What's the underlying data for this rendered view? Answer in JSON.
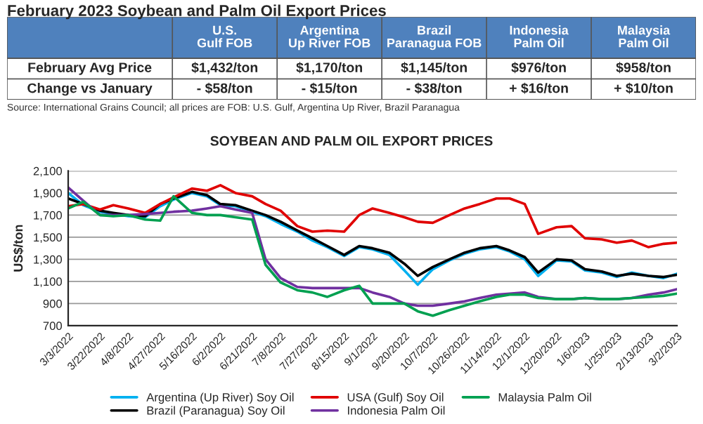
{
  "chart_data": [
    {
      "type": "other",
      "title": "February 2023 Soybean and Palm Oil Export Prices",
      "categories": [
        "U.S. Gulf FOB",
        "Argentina Up River FOB",
        "Brazil Paranagua FOB",
        "Indonesia Palm Oil",
        "Malaysia Palm Oil"
      ],
      "y_categories": [
        "February Avg Price",
        "Change vs January"
      ],
      "cell_labels": [
        [
          "$1,432/ton",
          "$1,170/ton",
          "$1,145/ton",
          "$976/ton",
          "$958/ton"
        ],
        [
          "- $58/ton",
          "- $15/ton",
          "- $38/ton",
          "+ $16/ton",
          "+ $10/ton"
        ]
      ],
      "annotations": [
        "Source: International Grains Council; all prices are FOB: U.S. Gulf, Argentina Up River, Brazil Paranagua"
      ]
    },
    {
      "type": "line",
      "title": "SOYBEAN AND PALM OIL EXPORT PRICES",
      "ylabel": "US$/ton",
      "x": [
        "2022-03-03",
        "2022-03-12",
        "2022-03-22",
        "2022-03-30",
        "2022-04-08",
        "2022-04-18",
        "2022-04-27",
        "2022-05-05",
        "2022-05-16",
        "2022-05-25",
        "2022-06-02",
        "2022-06-11",
        "2022-06-21",
        "2022-06-29",
        "2022-07-08",
        "2022-07-18",
        "2022-07-27",
        "2022-08-05",
        "2022-08-15",
        "2022-08-24",
        "2022-09-01",
        "2022-09-11",
        "2022-09-20",
        "2022-09-28",
        "2022-10-07",
        "2022-10-17",
        "2022-10-26",
        "2022-11-04",
        "2022-11-14",
        "2022-11-22",
        "2022-12-01",
        "2022-12-09",
        "2022-12-20",
        "2022-12-29",
        "2023-01-06",
        "2023-01-16",
        "2023-01-25",
        "2023-02-03",
        "2023-02-13",
        "2023-02-22",
        "2023-03-02"
      ],
      "series": [
        {
          "name": "Argentina (Up River) Soy Oil",
          "color": "#00b0f0",
          "values": [
            1900,
            1790,
            1730,
            1710,
            1690,
            1680,
            1780,
            1840,
            1900,
            1870,
            1790,
            1780,
            1730,
            1690,
            1620,
            1550,
            1470,
            1410,
            1330,
            1410,
            1390,
            1340,
            1200,
            1070,
            1210,
            1290,
            1350,
            1390,
            1410,
            1370,
            1300,
            1150,
            1290,
            1280,
            1200,
            1180,
            1140,
            1180,
            1150,
            1130,
            1170
          ]
        },
        {
          "name": "Brazil (Paranagua) Soy Oil",
          "color": "#000000",
          "values": [
            1850,
            1800,
            1740,
            1720,
            1700,
            1690,
            1800,
            1850,
            1910,
            1880,
            1800,
            1790,
            1740,
            1700,
            1640,
            1560,
            1490,
            1420,
            1340,
            1420,
            1400,
            1360,
            1260,
            1150,
            1230,
            1300,
            1360,
            1400,
            1420,
            1380,
            1320,
            1180,
            1300,
            1290,
            1210,
            1190,
            1150,
            1170,
            1150,
            1140,
            1160
          ]
        },
        {
          "name": "USA (Gulf) Soy Oil",
          "color": "#e00000",
          "values": [
            1780,
            1800,
            1750,
            1790,
            1760,
            1720,
            1800,
            1860,
            1940,
            1920,
            1970,
            1900,
            1870,
            1800,
            1740,
            1600,
            1550,
            1560,
            1550,
            1700,
            1760,
            1720,
            1680,
            1640,
            1630,
            1700,
            1760,
            1800,
            1850,
            1850,
            1800,
            1530,
            1590,
            1600,
            1490,
            1480,
            1450,
            1470,
            1410,
            1440,
            1450
          ]
        },
        {
          "name": "Indonesia Palm Oil",
          "color": "#7030a0",
          "values": [
            1950,
            1830,
            1700,
            1700,
            1700,
            1710,
            1720,
            1730,
            1740,
            1760,
            1780,
            1750,
            1720,
            1300,
            1130,
            1050,
            1040,
            1040,
            1040,
            1040,
            1000,
            960,
            900,
            880,
            880,
            900,
            920,
            950,
            980,
            990,
            1000,
            960,
            940,
            940,
            950,
            940,
            940,
            950,
            980,
            1000,
            1030
          ]
        },
        {
          "name": "Malaysia Palm Oil",
          "color": "#00a050",
          "values": [
            1760,
            1820,
            1700,
            1690,
            1700,
            1660,
            1650,
            1870,
            1720,
            1700,
            1700,
            1680,
            1660,
            1250,
            1090,
            1020,
            1000,
            960,
            1020,
            1060,
            900,
            900,
            900,
            830,
            790,
            840,
            880,
            920,
            960,
            980,
            980,
            950,
            940,
            940,
            950,
            940,
            940,
            950,
            960,
            970,
            990
          ]
        }
      ],
      "xlim": [
        "2022-03-03",
        "2023-03-02"
      ],
      "xticks": [
        {
          "value": "2022-03-03",
          "label": "3/3/2022"
        },
        {
          "value": "2022-03-22",
          "label": "3/22/2022"
        },
        {
          "value": "2022-04-08",
          "label": "4/8/2022"
        },
        {
          "value": "2022-04-27",
          "label": "4/27/2022"
        },
        {
          "value": "2022-05-16",
          "label": "5/16/2022"
        },
        {
          "value": "2022-06-02",
          "label": "6/2/2022"
        },
        {
          "value": "2022-06-21",
          "label": "6/21/2022"
        },
        {
          "value": "2022-07-08",
          "label": "7/8/2022"
        },
        {
          "value": "2022-07-27",
          "label": "7/27/2022"
        },
        {
          "value": "2022-08-15",
          "label": "8/15/2022"
        },
        {
          "value": "2022-09-01",
          "label": "9/1/2022"
        },
        {
          "value": "2022-09-20",
          "label": "9/20/2022"
        },
        {
          "value": "2022-10-07",
          "label": "10/7/2022"
        },
        {
          "value": "2022-10-26",
          "label": "10/26/2022"
        },
        {
          "value": "2022-11-14",
          "label": "11/14/2022"
        },
        {
          "value": "2022-12-01",
          "label": "12/1/2022"
        },
        {
          "value": "2022-12-20",
          "label": "12/20/2022"
        },
        {
          "value": "2023-01-06",
          "label": "1/6/2023"
        },
        {
          "value": "2023-01-25",
          "label": "1/25/2023"
        },
        {
          "value": "2023-02-13",
          "label": "2/13/2023"
        },
        {
          "value": "2023-03-02",
          "label": "3/2/2023"
        }
      ],
      "ylim": [
        700,
        2100
      ],
      "yticks": [
        700,
        900,
        {
          "value": 1100,
          "label": "1,100"
        },
        {
          "value": 1300,
          "label": "1,300"
        },
        {
          "value": 1500,
          "label": "1,500"
        },
        {
          "value": 1700,
          "label": "1,700"
        },
        {
          "value": 1900,
          "label": "1,900"
        },
        {
          "value": 2100,
          "label": "2,100"
        }
      ],
      "grid": "y",
      "legend": "bottom"
    }
  ]
}
